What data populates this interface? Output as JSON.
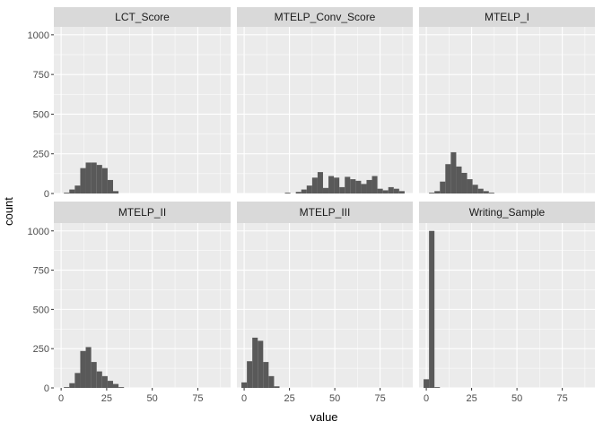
{
  "chart_data": {
    "type": "bar",
    "layout": "facet-grid",
    "xlabel": "value",
    "ylabel": "count",
    "xlim": [
      -4,
      93
    ],
    "ylim": [
      0,
      1050
    ],
    "x_ticks": [
      0,
      25,
      50,
      75
    ],
    "y_ticks": [
      0,
      250,
      500,
      750,
      1000
    ],
    "bin_width": 3,
    "bar_color": "#595959",
    "panel_background": "#ebebeb",
    "strip_background": "#d9d9d9",
    "grid": true,
    "facets": [
      {
        "name": "LCT_Score",
        "bins": [
          {
            "x": 3,
            "count": 5
          },
          {
            "x": 6,
            "count": 25
          },
          {
            "x": 9,
            "count": 50
          },
          {
            "x": 12,
            "count": 160
          },
          {
            "x": 15,
            "count": 195
          },
          {
            "x": 18,
            "count": 195
          },
          {
            "x": 21,
            "count": 180
          },
          {
            "x": 24,
            "count": 160
          },
          {
            "x": 27,
            "count": 85
          },
          {
            "x": 30,
            "count": 15
          }
        ]
      },
      {
        "name": "MTELP_Conv_Score",
        "bins": [
          {
            "x": 24,
            "count": 5
          },
          {
            "x": 30,
            "count": 10
          },
          {
            "x": 33,
            "count": 25
          },
          {
            "x": 36,
            "count": 50
          },
          {
            "x": 39,
            "count": 100
          },
          {
            "x": 42,
            "count": 135
          },
          {
            "x": 45,
            "count": 35
          },
          {
            "x": 48,
            "count": 110
          },
          {
            "x": 51,
            "count": 100
          },
          {
            "x": 54,
            "count": 40
          },
          {
            "x": 57,
            "count": 105
          },
          {
            "x": 60,
            "count": 90
          },
          {
            "x": 63,
            "count": 80
          },
          {
            "x": 66,
            "count": 60
          },
          {
            "x": 69,
            "count": 85
          },
          {
            "x": 72,
            "count": 110
          },
          {
            "x": 75,
            "count": 30
          },
          {
            "x": 78,
            "count": 20
          },
          {
            "x": 81,
            "count": 40
          },
          {
            "x": 84,
            "count": 30
          },
          {
            "x": 87,
            "count": 15
          }
        ]
      },
      {
        "name": "MTELP_I",
        "bins": [
          {
            "x": 3,
            "count": 5
          },
          {
            "x": 6,
            "count": 15
          },
          {
            "x": 9,
            "count": 75
          },
          {
            "x": 12,
            "count": 185
          },
          {
            "x": 15,
            "count": 260
          },
          {
            "x": 18,
            "count": 170
          },
          {
            "x": 21,
            "count": 130
          },
          {
            "x": 24,
            "count": 90
          },
          {
            "x": 27,
            "count": 55
          },
          {
            "x": 30,
            "count": 30
          },
          {
            "x": 33,
            "count": 15
          },
          {
            "x": 36,
            "count": 5
          }
        ]
      },
      {
        "name": "MTELP_II",
        "bins": [
          {
            "x": 3,
            "count": 5
          },
          {
            "x": 6,
            "count": 30
          },
          {
            "x": 9,
            "count": 95
          },
          {
            "x": 12,
            "count": 235
          },
          {
            "x": 15,
            "count": 260
          },
          {
            "x": 18,
            "count": 165
          },
          {
            "x": 21,
            "count": 105
          },
          {
            "x": 24,
            "count": 75
          },
          {
            "x": 27,
            "count": 45
          },
          {
            "x": 30,
            "count": 25
          },
          {
            "x": 33,
            "count": 5
          }
        ]
      },
      {
        "name": "MTELP_III",
        "bins": [
          {
            "x": 0,
            "count": 35
          },
          {
            "x": 3,
            "count": 170
          },
          {
            "x": 6,
            "count": 320
          },
          {
            "x": 9,
            "count": 300
          },
          {
            "x": 12,
            "count": 165
          },
          {
            "x": 15,
            "count": 75
          },
          {
            "x": 18,
            "count": 10
          }
        ]
      },
      {
        "name": "Writing_Sample",
        "bins": [
          {
            "x": 0,
            "count": 55
          },
          {
            "x": 3,
            "count": 1000
          },
          {
            "x": 6,
            "count": 5
          }
        ]
      }
    ]
  }
}
